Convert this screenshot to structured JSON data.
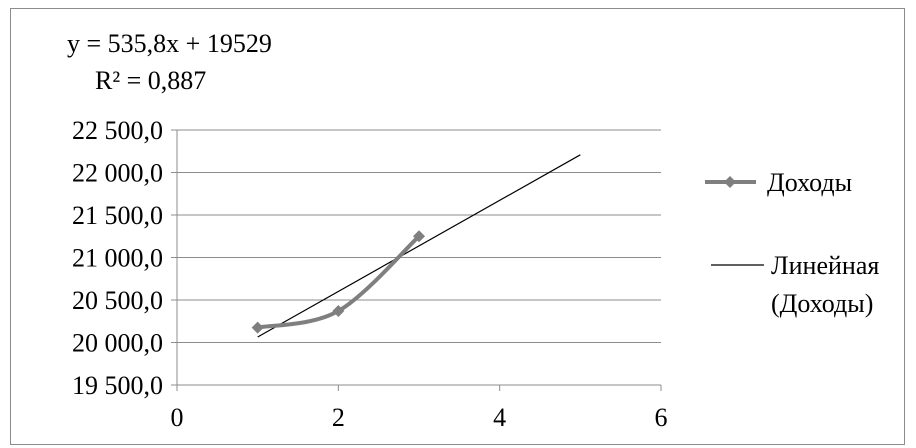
{
  "chart_data": {
    "type": "line",
    "title": "",
    "xlabel": "",
    "ylabel": "",
    "xlim": [
      0,
      6
    ],
    "ylim": [
      19500,
      22500
    ],
    "x_ticks": [
      0,
      2,
      4,
      6
    ],
    "x_tick_labels": [
      "0",
      "2",
      "4",
      "6"
    ],
    "y_ticks": [
      19500,
      20000,
      20500,
      21000,
      21500,
      22000,
      22500
    ],
    "y_tick_labels": [
      "19 500,0",
      "20 000,0",
      "20 500,0",
      "21 000,0",
      "21 500,0",
      "22 000,0",
      "22 500,0"
    ],
    "grid": "horizontal",
    "legend_position": "right",
    "series": [
      {
        "name": "Доходы",
        "style": "smoothed-line-with-diamond-markers",
        "color": "#7f7f7f",
        "x": [
          1,
          2,
          3
        ],
        "y": [
          20175,
          20370,
          21250
        ]
      }
    ],
    "trendline": {
      "name_line1": "Линейная",
      "name_line2": "(Доходы)",
      "type": "linear",
      "color": "#000000",
      "slope": 535.8,
      "intercept": 19529,
      "x_range": [
        1,
        5
      ],
      "equation_text": "y = 535,8x + 19529",
      "r2_text": "R² = 0,887"
    }
  }
}
